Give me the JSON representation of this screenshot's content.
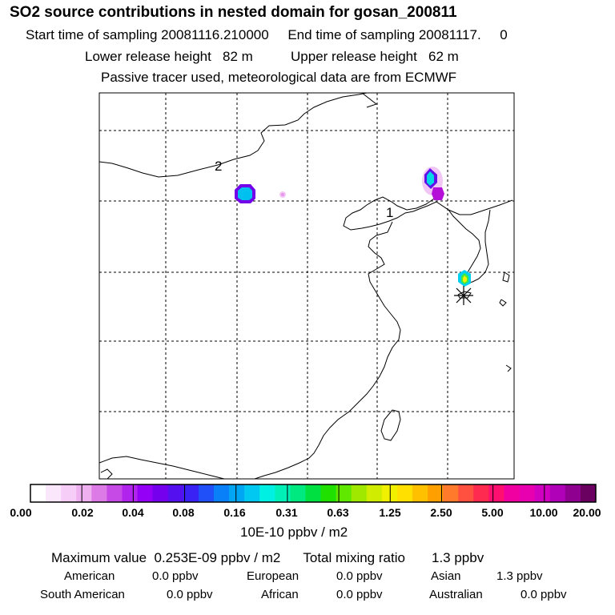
{
  "header": {
    "title": "SO2 source contributions in nested domain for gosan_200811",
    "start_label": "Start time of sampling",
    "start_value": "20081116.210000",
    "end_label": "End time of sampling",
    "end_value": "20081117.     0",
    "lower_label": "Lower release height",
    "lower_value": "82 m",
    "upper_label": "Upper release height",
    "upper_value": "62 m",
    "note": "Passive tracer used, meteorological data are from ECMWF"
  },
  "map": {
    "labels": [
      "2",
      "1"
    ],
    "station_marker": "asterisk-icon"
  },
  "colorbar": {
    "colors": [
      "#ffffff",
      "#fbe7fb",
      "#f6cdf6",
      "#efb0f0",
      "#dc7ae6",
      "#c64ae6",
      "#b024ee",
      "#9400f5",
      "#7400ee",
      "#5510f0",
      "#3a22f5",
      "#1f50f8",
      "#0a80f8",
      "#00a6f4",
      "#00c8f0",
      "#00f0e4",
      "#00f0b8",
      "#00e880",
      "#00e040",
      "#20e000",
      "#60e800",
      "#a0e800",
      "#d0ec00",
      "#f0f000",
      "#ffe000",
      "#ffc000",
      "#ffa000",
      "#ff7a2a",
      "#ff5040",
      "#ff2a50",
      "#ff1070",
      "#f000a0",
      "#e800b0",
      "#d000c0",
      "#b000b8",
      "#900090",
      "#6a0060"
    ],
    "tick_labels": [
      "0.00",
      "0.02",
      "0.04",
      "0.08",
      "0.16",
      "0.31",
      "0.63",
      "1.25",
      "2.50",
      "5.00",
      "10.00",
      "20.00"
    ],
    "unit": "10E-10 ppbv / m2"
  },
  "summary": {
    "max_label": "Maximum value",
    "max_value": "0.253E-09 ppbv / m2",
    "total_label": "Total mixing ratio",
    "total_value": "1.3 ppbv",
    "regions": [
      {
        "name": "American",
        "value": "0.0 ppbv"
      },
      {
        "name": "European",
        "value": "0.0 ppbv"
      },
      {
        "name": "Asian",
        "value": "1.3 ppbv"
      },
      {
        "name": "South American",
        "value": "0.0 ppbv"
      },
      {
        "name": "African",
        "value": "0.0 ppbv"
      },
      {
        "name": "Australian",
        "value": "0.0 ppbv"
      }
    ]
  }
}
